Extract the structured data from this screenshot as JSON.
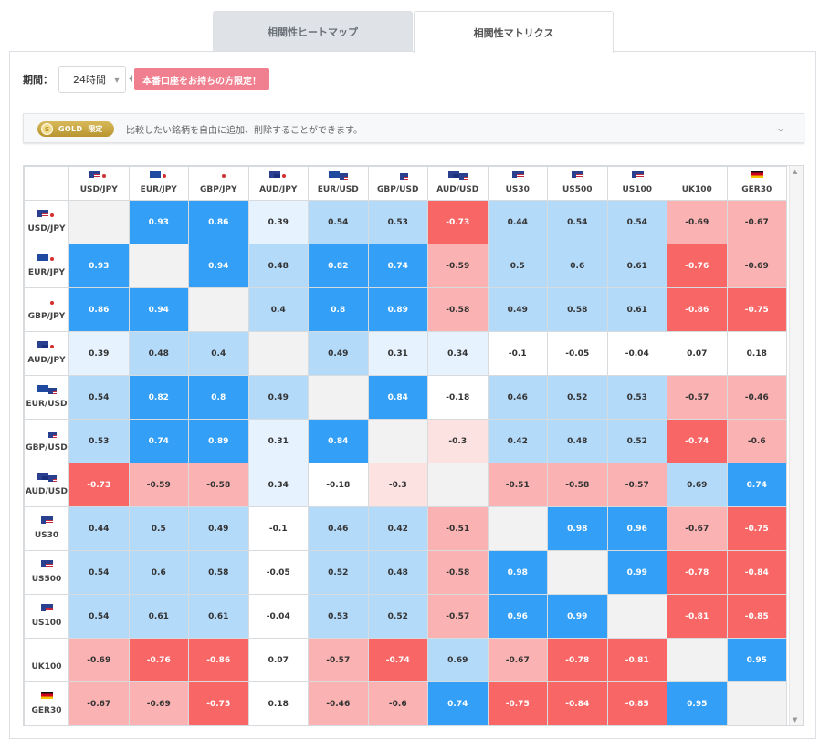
{
  "tabs": [
    {
      "label": "相関性ヒートマップ",
      "active": false
    },
    {
      "label": "相関性マトリクス",
      "active": true
    }
  ],
  "period": {
    "label": "期間：",
    "value": "24時間"
  },
  "live_badge": "本番口座をお持ちの方限定！",
  "gold": {
    "badge_gold": "GOLD",
    "badge_limited": "限定",
    "text": "比較したい銘柄を自由に追加、削除することができます。"
  },
  "colors": {
    "strong_pos": "#339ff7",
    "mid_pos": "#b4dafa",
    "weak_pos": "#e6f2fd",
    "strong_neg": "#f86666",
    "mid_neg": "#fbb2b2",
    "weak_neg": "#fde2e2",
    "diag": "#f2f2f2"
  },
  "instruments": [
    {
      "label": "USD/JPY",
      "flag": [
        "us",
        "jp"
      ]
    },
    {
      "label": "EUR/JPY",
      "flag": [
        "eu",
        "jp"
      ]
    },
    {
      "label": "GBP/JPY",
      "flag": [
        "gb",
        "jp"
      ]
    },
    {
      "label": "AUD/JPY",
      "flag": [
        "au",
        "jp"
      ]
    },
    {
      "label": "EUR/USD",
      "flag": [
        "eu",
        "us"
      ]
    },
    {
      "label": "GBP/USD",
      "flag": [
        "gb",
        "us"
      ]
    },
    {
      "label": "AUD/USD",
      "flag": [
        "au",
        "us"
      ]
    },
    {
      "label": "US30",
      "flag": [
        "us"
      ]
    },
    {
      "label": "US500",
      "flag": [
        "us"
      ]
    },
    {
      "label": "US100",
      "flag": [
        "us"
      ]
    },
    {
      "label": "UK100",
      "flag": [
        "gb"
      ]
    },
    {
      "label": "GER30",
      "flag": [
        "de"
      ]
    }
  ],
  "matrix": [
    [
      null,
      "0.93",
      "0.86",
      "0.39",
      "0.54",
      "0.53",
      "-0.73",
      "0.44",
      "0.54",
      "0.54",
      "-0.69",
      "-0.67"
    ],
    [
      "0.93",
      null,
      "0.94",
      "0.48",
      "0.82",
      "0.74",
      "-0.59",
      "0.5",
      "0.6",
      "0.61",
      "-0.76",
      "-0.69"
    ],
    [
      "0.86",
      "0.94",
      null,
      "0.4",
      "0.8",
      "0.89",
      "-0.58",
      "0.49",
      "0.58",
      "0.61",
      "-0.86",
      "-0.75"
    ],
    [
      "0.39",
      "0.48",
      "0.4",
      null,
      "0.49",
      "0.31",
      "0.34",
      "-0.1",
      "-0.05",
      "-0.04",
      "0.07",
      "0.18"
    ],
    [
      "0.54",
      "0.82",
      "0.8",
      "0.49",
      null,
      "0.84",
      "-0.18",
      "0.46",
      "0.52",
      "0.53",
      "-0.57",
      "-0.46"
    ],
    [
      "0.53",
      "0.74",
      "0.89",
      "0.31",
      "0.84",
      null,
      "-0.3",
      "0.42",
      "0.48",
      "0.52",
      "-0.74",
      "-0.6"
    ],
    [
      "-0.73",
      "-0.59",
      "-0.58",
      "0.34",
      "-0.18",
      "-0.3",
      null,
      "-0.51",
      "-0.58",
      "-0.57",
      "0.69",
      "0.74"
    ],
    [
      "0.44",
      "0.5",
      "0.49",
      "-0.1",
      "0.46",
      "0.42",
      "-0.51",
      null,
      "0.98",
      "0.96",
      "-0.67",
      "-0.75"
    ],
    [
      "0.54",
      "0.6",
      "0.58",
      "-0.05",
      "0.52",
      "0.48",
      "-0.58",
      "0.98",
      null,
      "0.99",
      "-0.78",
      "-0.84"
    ],
    [
      "0.54",
      "0.61",
      "0.61",
      "-0.04",
      "0.53",
      "0.52",
      "-0.57",
      "0.96",
      "0.99",
      null,
      "-0.81",
      "-0.85"
    ],
    [
      "-0.69",
      "-0.76",
      "-0.86",
      "0.07",
      "-0.57",
      "-0.74",
      "0.69",
      "-0.67",
      "-0.78",
      "-0.81",
      null,
      "0.95"
    ],
    [
      "-0.67",
      "-0.69",
      "-0.75",
      "0.18",
      "-0.46",
      "-0.6",
      "0.74",
      "-0.75",
      "-0.84",
      "-0.85",
      "0.95",
      null
    ]
  ]
}
